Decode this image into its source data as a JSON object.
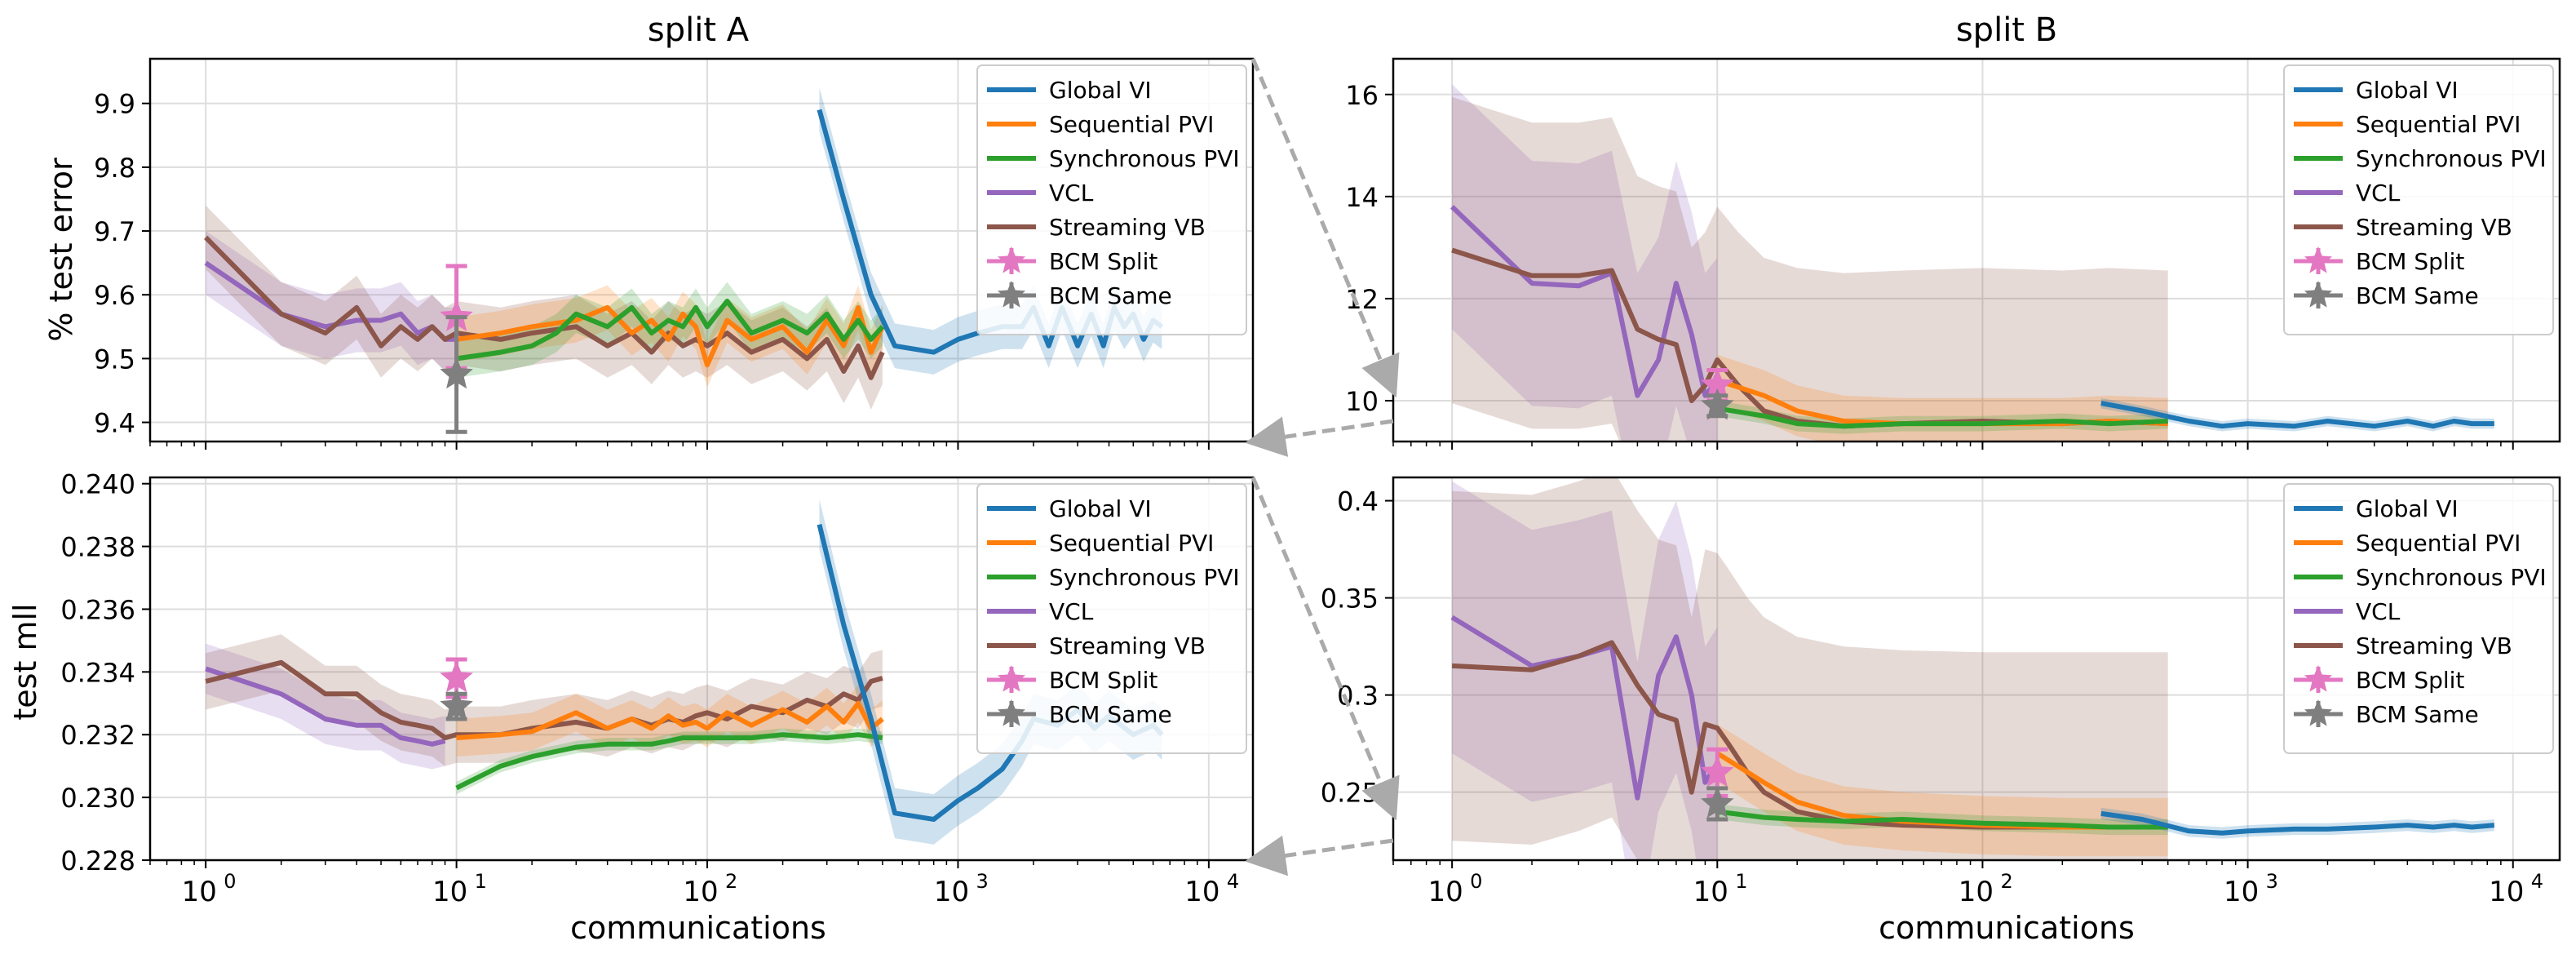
{
  "colors": {
    "Global VI": "#1f77b4",
    "Sequential PVI": "#ff7f0e",
    "Synchronous PVI": "#2ca02c",
    "VCL": "#9467bd",
    "Streaming VB": "#8c564b",
    "BCM Split": "#e377c2",
    "BCM Same": "#7f7f7f"
  },
  "legend": [
    "Global VI",
    "Sequential PVI",
    "Synchronous PVI",
    "VCL",
    "Streaming VB",
    "BCM Split",
    "BCM Same"
  ],
  "chart_data": [
    {
      "id": "A-error",
      "type": "line",
      "title": "split A",
      "xlabel": "",
      "ylabel": "% test error",
      "xscale": "log",
      "xlim": [
        0.6,
        15000
      ],
      "ylim": [
        9.37,
        9.97
      ],
      "xticks": [
        {
          "v": 1,
          "label": "10^0"
        },
        {
          "v": 10,
          "label": "10^1"
        },
        {
          "v": 100,
          "label": "10^2"
        },
        {
          "v": 1000,
          "label": "10^3"
        },
        {
          "v": 10000,
          "label": "10^4"
        }
      ],
      "show_xticklabels": false,
      "yticks": [
        {
          "v": 9.4,
          "label": "9.4"
        },
        {
          "v": 9.5,
          "label": "9.5"
        },
        {
          "v": 9.6,
          "label": "9.6"
        },
        {
          "v": 9.7,
          "label": "9.7"
        },
        {
          "v": 9.8,
          "label": "9.8"
        },
        {
          "v": 9.9,
          "label": "9.9"
        }
      ],
      "legend_position": "upper-right",
      "series": [
        {
          "name": "VCL",
          "band": 0.05,
          "x": [
            1,
            2,
            3,
            4,
            5,
            6,
            7,
            8,
            9,
            10
          ],
          "y": [
            9.65,
            9.57,
            9.55,
            9.56,
            9.56,
            9.57,
            9.54,
            9.55,
            9.53,
            9.53
          ]
        },
        {
          "name": "Streaming VB",
          "band": 0.05,
          "x": [
            1,
            2,
            3,
            4,
            5,
            6,
            7,
            8,
            9,
            10,
            15,
            20,
            30,
            40,
            50,
            60,
            70,
            80,
            90,
            100,
            120,
            150,
            200,
            250,
            300,
            350,
            400,
            450,
            500
          ],
          "y": [
            9.69,
            9.57,
            9.54,
            9.58,
            9.52,
            9.55,
            9.53,
            9.55,
            9.53,
            9.54,
            9.53,
            9.54,
            9.55,
            9.52,
            9.54,
            9.51,
            9.54,
            9.52,
            9.53,
            9.52,
            9.54,
            9.51,
            9.53,
            9.5,
            9.53,
            9.48,
            9.52,
            9.47,
            9.51
          ]
        },
        {
          "name": "Sequential PVI",
          "band": 0.035,
          "x": [
            10,
            15,
            20,
            30,
            40,
            50,
            60,
            70,
            80,
            90,
            100,
            120,
            150,
            200,
            250,
            300,
            350,
            400,
            450,
            500
          ],
          "y": [
            9.53,
            9.54,
            9.55,
            9.56,
            9.58,
            9.54,
            9.56,
            9.53,
            9.57,
            9.55,
            9.49,
            9.56,
            9.53,
            9.55,
            9.51,
            9.56,
            9.52,
            9.58,
            9.51,
            9.55
          ]
        },
        {
          "name": "Synchronous PVI",
          "band": 0.03,
          "x": [
            10,
            15,
            20,
            25,
            30,
            40,
            50,
            60,
            70,
            80,
            90,
            100,
            120,
            150,
            200,
            250,
            300,
            350,
            400,
            450,
            500
          ],
          "y": [
            9.5,
            9.51,
            9.52,
            9.54,
            9.57,
            9.55,
            9.58,
            9.54,
            9.56,
            9.55,
            9.58,
            9.55,
            9.59,
            9.54,
            9.56,
            9.54,
            9.57,
            9.53,
            9.56,
            9.53,
            9.55
          ]
        },
        {
          "name": "Global VI",
          "band": 0.035,
          "x": [
            280,
            350,
            450,
            560,
            800,
            1000,
            1200,
            1500,
            1800,
            2000,
            2300,
            2600,
            3000,
            3400,
            3800,
            4200,
            4600,
            5000,
            5500,
            6000,
            6500
          ],
          "y": [
            9.89,
            9.75,
            9.6,
            9.52,
            9.51,
            9.53,
            9.54,
            9.55,
            9.55,
            9.58,
            9.52,
            9.58,
            9.52,
            9.57,
            9.52,
            9.58,
            9.55,
            9.57,
            9.53,
            9.56,
            9.55
          ]
        }
      ],
      "markers": [
        {
          "name": "BCM Split",
          "x": 10,
          "y": 9.565,
          "err": 0.08
        },
        {
          "name": "BCM Same",
          "x": 10,
          "y": 9.475,
          "err": 0.09
        }
      ]
    },
    {
      "id": "B-error",
      "type": "line",
      "title": "split B",
      "xlabel": "",
      "ylabel": "",
      "xscale": "log",
      "xlim": [
        0.6,
        15000
      ],
      "ylim": [
        9.2,
        16.7
      ],
      "xticks": [
        {
          "v": 1,
          "label": "10^0"
        },
        {
          "v": 10,
          "label": "10^1"
        },
        {
          "v": 100,
          "label": "10^2"
        },
        {
          "v": 1000,
          "label": "10^3"
        },
        {
          "v": 10000,
          "label": "10^4"
        }
      ],
      "show_xticklabels": false,
      "yticks": [
        {
          "v": 10,
          "label": "10"
        },
        {
          "v": 12,
          "label": "12"
        },
        {
          "v": 14,
          "label": "14"
        },
        {
          "v": 16,
          "label": "16"
        }
      ],
      "legend_position": "upper-right",
      "series": [
        {
          "name": "VCL",
          "band": 2.4,
          "x": [
            1,
            2,
            3,
            4,
            5,
            6,
            7,
            8,
            9,
            10
          ],
          "y": [
            13.8,
            12.3,
            12.25,
            12.5,
            10.1,
            10.8,
            12.3,
            11.3,
            10.1,
            10.4
          ]
        },
        {
          "name": "Streaming VB",
          "band": 3.0,
          "x": [
            1,
            2,
            3,
            4,
            5,
            6,
            7,
            8,
            9,
            10,
            12,
            15,
            20,
            30,
            50,
            100,
            200,
            300,
            500
          ],
          "y": [
            12.95,
            12.45,
            12.45,
            12.55,
            11.4,
            11.2,
            11.1,
            10.0,
            10.3,
            10.8,
            10.3,
            9.8,
            9.6,
            9.5,
            9.55,
            9.6,
            9.55,
            9.6,
            9.55
          ]
        },
        {
          "name": "Sequential PVI",
          "band": 0.5,
          "x": [
            10,
            15,
            20,
            30,
            50,
            100,
            200,
            300,
            500
          ],
          "y": [
            10.4,
            10.1,
            9.8,
            9.6,
            9.55,
            9.55,
            9.55,
            9.6,
            9.55
          ]
        },
        {
          "name": "Synchronous PVI",
          "band": 0.15,
          "x": [
            10,
            15,
            20,
            30,
            50,
            100,
            200,
            300,
            500
          ],
          "y": [
            9.85,
            9.7,
            9.55,
            9.5,
            9.55,
            9.55,
            9.6,
            9.55,
            9.6
          ]
        },
        {
          "name": "Global VI",
          "band": 0.1,
          "x": [
            280,
            400,
            600,
            800,
            1000,
            1500,
            2000,
            3000,
            4000,
            5000,
            6000,
            7000,
            8500
          ],
          "y": [
            9.95,
            9.8,
            9.6,
            9.5,
            9.55,
            9.5,
            9.6,
            9.5,
            9.6,
            9.5,
            9.6,
            9.55,
            9.55
          ]
        }
      ],
      "markers": [
        {
          "name": "BCM Split",
          "x": 10,
          "y": 10.3,
          "err": 0.3
        },
        {
          "name": "BCM Same",
          "x": 10,
          "y": 9.9,
          "err": 0.2
        }
      ]
    },
    {
      "id": "A-mll",
      "type": "line",
      "title": "",
      "xlabel": "communications",
      "ylabel": "test mll",
      "xscale": "log",
      "xlim": [
        0.6,
        15000
      ],
      "ylim": [
        0.228,
        0.2402
      ],
      "xticks": [
        {
          "v": 1,
          "label": "10^0"
        },
        {
          "v": 10,
          "label": "10^1"
        },
        {
          "v": 100,
          "label": "10^2"
        },
        {
          "v": 1000,
          "label": "10^3"
        },
        {
          "v": 10000,
          "label": "10^4"
        }
      ],
      "show_xticklabels": true,
      "yticks": [
        {
          "v": 0.228,
          "label": "0.228"
        },
        {
          "v": 0.23,
          "label": "0.230"
        },
        {
          "v": 0.232,
          "label": "0.232"
        },
        {
          "v": 0.234,
          "label": "0.234"
        },
        {
          "v": 0.236,
          "label": "0.236"
        },
        {
          "v": 0.238,
          "label": "0.238"
        },
        {
          "v": 0.24,
          "label": "0.240"
        }
      ],
      "legend_position": "upper-right",
      "series": [
        {
          "name": "VCL",
          "band": 0.0008,
          "x": [
            1,
            2,
            3,
            4,
            5,
            6,
            7,
            8,
            9
          ],
          "y": [
            0.2341,
            0.2333,
            0.2325,
            0.2323,
            0.2323,
            0.2319,
            0.2318,
            0.2317,
            0.2318
          ]
        },
        {
          "name": "Streaming VB",
          "band": 0.0009,
          "x": [
            1,
            2,
            3,
            4,
            5,
            6,
            7,
            8,
            9,
            10,
            15,
            20,
            30,
            40,
            50,
            60,
            70,
            80,
            90,
            100,
            120,
            150,
            200,
            250,
            300,
            350,
            400,
            450,
            500
          ],
          "y": [
            0.2337,
            0.2343,
            0.2333,
            0.2333,
            0.2327,
            0.2324,
            0.2323,
            0.2322,
            0.2319,
            0.232,
            0.232,
            0.2322,
            0.2324,
            0.2322,
            0.2325,
            0.2323,
            0.2325,
            0.2324,
            0.2326,
            0.2327,
            0.2325,
            0.2329,
            0.2327,
            0.2331,
            0.2329,
            0.2333,
            0.2331,
            0.2337,
            0.2338
          ]
        },
        {
          "name": "Sequential PVI",
          "band": 0.0006,
          "x": [
            10,
            15,
            20,
            30,
            40,
            50,
            60,
            70,
            80,
            90,
            100,
            120,
            150,
            200,
            250,
            300,
            350,
            400,
            450,
            500
          ],
          "y": [
            0.2319,
            0.232,
            0.2321,
            0.2327,
            0.2322,
            0.2325,
            0.2322,
            0.2326,
            0.2323,
            0.2324,
            0.2322,
            0.2327,
            0.2323,
            0.2328,
            0.2324,
            0.2329,
            0.2324,
            0.233,
            0.2322,
            0.2325
          ]
        },
        {
          "name": "Synchronous PVI",
          "band": 0.0002,
          "x": [
            10,
            15,
            20,
            30,
            40,
            50,
            60,
            70,
            80,
            100,
            150,
            200,
            300,
            400,
            500
          ],
          "y": [
            0.2303,
            0.231,
            0.2313,
            0.2316,
            0.2317,
            0.2317,
            0.2317,
            0.2318,
            0.2319,
            0.2319,
            0.2319,
            0.232,
            0.2319,
            0.232,
            0.2319
          ]
        },
        {
          "name": "Global VI",
          "band": 0.0008,
          "x": [
            280,
            350,
            450,
            560,
            800,
            1000,
            1200,
            1500,
            1800,
            2000,
            2500,
            3000,
            3500,
            4000,
            5000,
            6000,
            6500
          ],
          "y": [
            0.2387,
            0.2355,
            0.2325,
            0.2295,
            0.2293,
            0.2299,
            0.2303,
            0.2309,
            0.2318,
            0.2325,
            0.2323,
            0.2328,
            0.2322,
            0.2326,
            0.232,
            0.2323,
            0.232
          ]
        }
      ],
      "markers": [
        {
          "name": "BCM Split",
          "x": 10,
          "y": 0.2338,
          "err": 0.0006
        },
        {
          "name": "BCM Same",
          "x": 10,
          "y": 0.2329,
          "err": 0.0004
        }
      ]
    },
    {
      "id": "B-mll",
      "type": "line",
      "title": "",
      "xlabel": "communications",
      "ylabel": "",
      "xscale": "log",
      "xlim": [
        0.6,
        15000
      ],
      "ylim": [
        0.215,
        0.412
      ],
      "xticks": [
        {
          "v": 1,
          "label": "10^0"
        },
        {
          "v": 10,
          "label": "10^1"
        },
        {
          "v": 100,
          "label": "10^2"
        },
        {
          "v": 1000,
          "label": "10^3"
        },
        {
          "v": 10000,
          "label": "10^4"
        }
      ],
      "show_xticklabels": true,
      "yticks": [
        {
          "v": 0.25,
          "label": "0.25"
        },
        {
          "v": 0.3,
          "label": "0.3"
        },
        {
          "v": 0.35,
          "label": "0.35"
        },
        {
          "v": 0.4,
          "label": "0.4"
        }
      ],
      "legend_position": "upper-right",
      "series": [
        {
          "name": "VCL",
          "band": 0.07,
          "x": [
            1,
            2,
            3,
            4,
            5,
            6,
            7,
            8,
            9,
            10
          ],
          "y": [
            0.34,
            0.315,
            0.32,
            0.325,
            0.247,
            0.31,
            0.33,
            0.3,
            0.255,
            0.265
          ]
        },
        {
          "name": "Streaming VB",
          "band": 0.09,
          "x": [
            1,
            2,
            3,
            4,
            5,
            6,
            7,
            8,
            9,
            10,
            11,
            13,
            15,
            20,
            30,
            50,
            100,
            200,
            300,
            500
          ],
          "y": [
            0.315,
            0.313,
            0.32,
            0.327,
            0.305,
            0.29,
            0.287,
            0.25,
            0.285,
            0.283,
            0.275,
            0.26,
            0.25,
            0.24,
            0.235,
            0.233,
            0.232,
            0.232,
            0.232,
            0.232
          ]
        },
        {
          "name": "Sequential PVI",
          "band": 0.015,
          "x": [
            10,
            15,
            20,
            30,
            50,
            100,
            200,
            300,
            500
          ],
          "y": [
            0.27,
            0.255,
            0.245,
            0.238,
            0.235,
            0.233,
            0.232,
            0.232,
            0.232
          ]
        },
        {
          "name": "Synchronous PVI",
          "band": 0.004,
          "x": [
            10,
            15,
            20,
            30,
            50,
            100,
            200,
            300,
            500
          ],
          "y": [
            0.24,
            0.237,
            0.236,
            0.235,
            0.236,
            0.234,
            0.233,
            0.232,
            0.232
          ]
        },
        {
          "name": "Global VI",
          "band": 0.003,
          "x": [
            280,
            400,
            600,
            800,
            1000,
            1500,
            2000,
            3000,
            4000,
            5000,
            6000,
            7000,
            8500
          ],
          "y": [
            0.239,
            0.236,
            0.23,
            0.229,
            0.23,
            0.231,
            0.231,
            0.232,
            0.233,
            0.232,
            0.233,
            0.232,
            0.233
          ]
        }
      ],
      "markers": [
        {
          "name": "BCM Split",
          "x": 10,
          "y": 0.26,
          "err": 0.012
        },
        {
          "name": "BCM Same",
          "x": 10,
          "y": 0.244,
          "err": 0.008
        }
      ]
    }
  ]
}
